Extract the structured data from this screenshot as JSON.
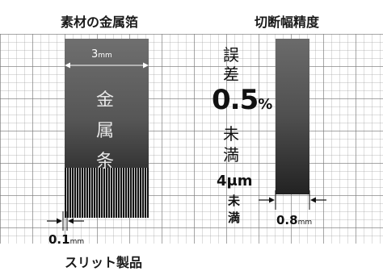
{
  "left_title": "素材の金属箔",
  "right_title": "切断幅精度",
  "bottom_label": "スリット製品",
  "left_strip": {
    "width_value": "3",
    "width_unit": "mm",
    "text": [
      "金",
      "属",
      "条"
    ],
    "slit_value": "0.1",
    "slit_unit": "mm"
  },
  "right_strip": {
    "error_text": [
      "誤",
      "差"
    ],
    "error_value": "0.5",
    "error_unit": "%",
    "under_text": [
      "未",
      "満"
    ],
    "precision_value": "4μm",
    "precision_under": [
      "未",
      "満"
    ],
    "width_value": "0.8",
    "width_unit": "mm"
  },
  "colors": {
    "strip_top": "#6f6f6f",
    "strip_bottom": "#1c1c1c",
    "grid_line": "#8c8c8c"
  }
}
